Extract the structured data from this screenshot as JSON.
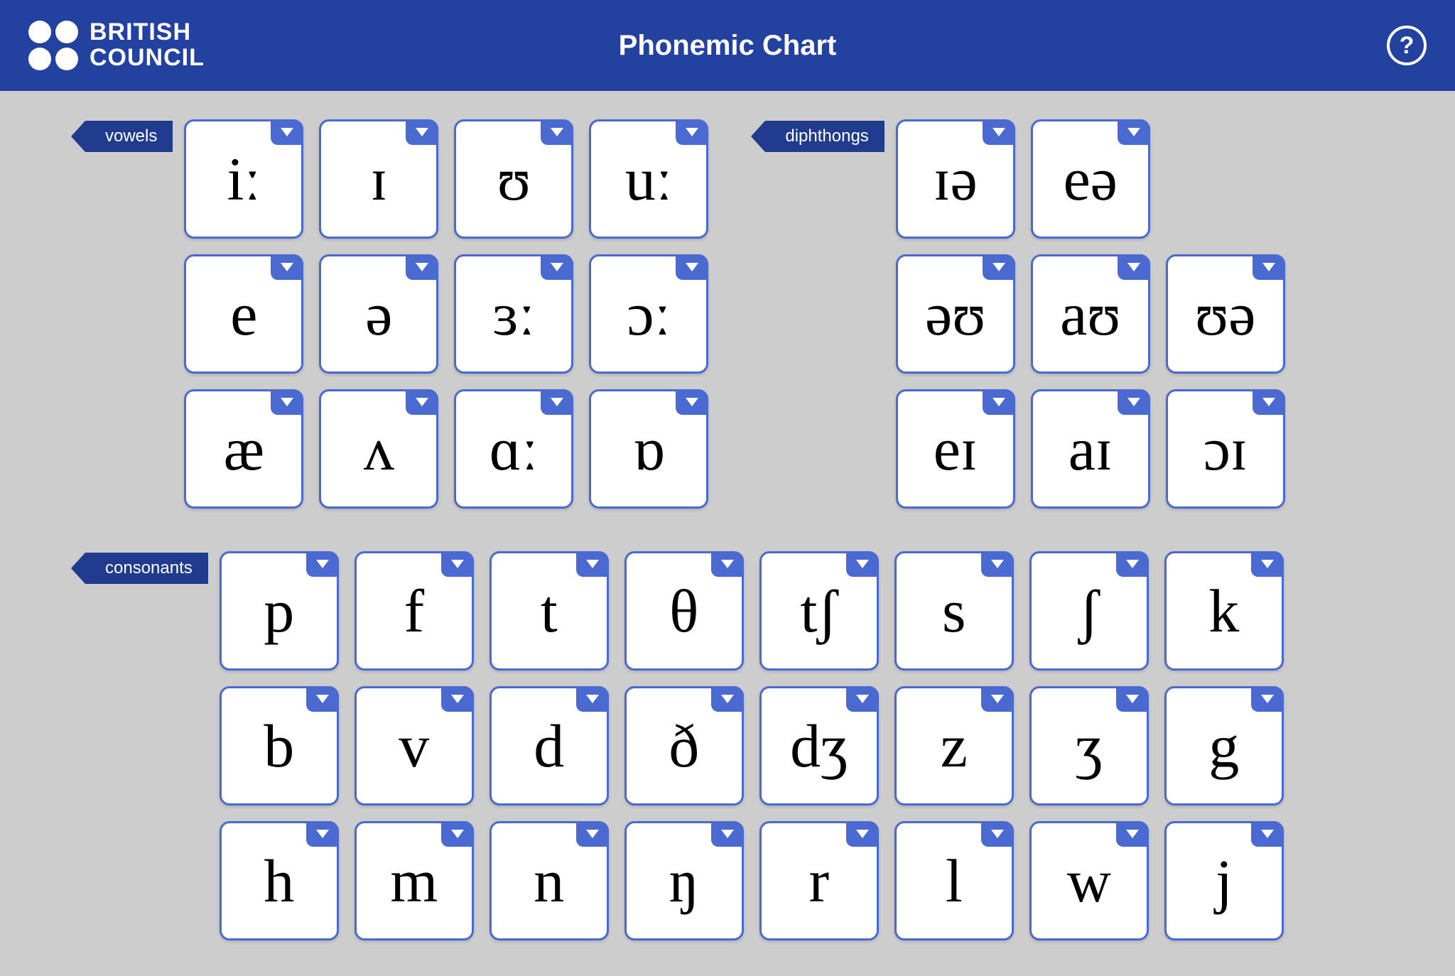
{
  "header": {
    "logo_line1": "BRITISH",
    "logo_line2": "COUNCIL",
    "title": "Phonemic Chart",
    "help_label": "?"
  },
  "theme": {
    "header_bg": "#23419f",
    "page_bg": "#cdcdcd",
    "card_bg": "#ffffff",
    "card_border": "#4b6ad1",
    "dropdown_bg": "#4b6ad1",
    "label_bg": "#213c8f",
    "text_color": "#ffffff",
    "symbol_color": "#000000",
    "symbol_fontsize": 86,
    "card_size": 168,
    "card_radius": 14
  },
  "sections": {
    "vowels": {
      "label": "vowels",
      "columns": 4,
      "rows": [
        [
          "iː",
          "ɪ",
          "ʊ",
          "uː"
        ],
        [
          "e",
          "ə",
          "ɜː",
          "ɔː"
        ],
        [
          "æ",
          "ʌ",
          "ɑː",
          "ɒ"
        ]
      ]
    },
    "diphthongs": {
      "label": "diphthongs",
      "columns": 3,
      "rows": [
        [
          "ɪə",
          "eə",
          null
        ],
        [
          "əʊ",
          "aʊ",
          "ʊə"
        ],
        [
          "eɪ",
          "aɪ",
          "ɔɪ"
        ]
      ]
    },
    "consonants": {
      "label": "consonants",
      "columns": 8,
      "rows": [
        [
          "p",
          "f",
          "t",
          "θ",
          "tʃ",
          "s",
          "ʃ",
          "k"
        ],
        [
          "b",
          "v",
          "d",
          "ð",
          "dʒ",
          "z",
          "ʒ",
          "g"
        ],
        [
          "h",
          "m",
          "n",
          "ŋ",
          "r",
          "l",
          "w",
          "j"
        ]
      ]
    }
  }
}
